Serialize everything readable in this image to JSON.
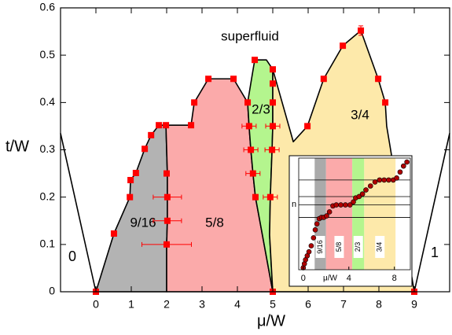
{
  "chart_data": [
    {
      "type": "phase",
      "xlabel": "μ/W",
      "ylabel": "t/W",
      "xlim": [
        -1,
        10
      ],
      "ylim": [
        0,
        0.6
      ],
      "xticks": [
        0,
        1,
        2,
        3,
        4,
        5,
        6,
        7,
        8,
        9
      ],
      "yticks": [
        0,
        0.1,
        0.2,
        0.3,
        0.4,
        0.5,
        0.6
      ],
      "regions": [
        {
          "name": "9/16",
          "color": "#b3b3b3",
          "x": [
            0,
            0.51,
            0.96,
            0.98,
            1.13,
            1.38,
            1.56,
            1.78,
            1.98,
            2.0,
            2.02,
            2.02,
            2.02,
            2.0,
            2.0
          ],
          "y": [
            0,
            0.123,
            0.2,
            0.236,
            0.251,
            0.302,
            0.331,
            0.352,
            0.352,
            0.3,
            0.25,
            0.2,
            0.15,
            0.1,
            0
          ]
        },
        {
          "name": "5/8",
          "color": "#fbaaaa",
          "x": [
            2.0,
            2.0,
            2.02,
            2.02,
            2.02,
            2.0,
            1.98,
            2.69,
            2.78,
            3.18,
            3.89,
            4.29,
            4.33,
            4.38,
            4.44,
            4.51,
            4.67,
            5.0
          ],
          "y": [
            0,
            0.1,
            0.15,
            0.2,
            0.25,
            0.3,
            0.352,
            0.352,
            0.4,
            0.45,
            0.45,
            0.4,
            0.35,
            0.3,
            0.25,
            0.2,
            0.135,
            0
          ]
        },
        {
          "name": "2/3",
          "color": "#b4f58e",
          "x": [
            5.0,
            4.67,
            4.51,
            4.44,
            4.38,
            4.33,
            4.29,
            4.4,
            4.49,
            4.82,
            5.0,
            5.0,
            5.0,
            5.0,
            4.98,
            4.93,
            4.91
          ],
          "y": [
            0,
            0.135,
            0.2,
            0.25,
            0.3,
            0.35,
            0.4,
            0.45,
            0.49,
            0.49,
            0.47,
            0.44,
            0.4,
            0.35,
            0.3,
            0.2,
            0.12
          ]
        },
        {
          "name": "3/4",
          "color": "#fde9aa",
          "x": [
            5.0,
            4.91,
            4.93,
            4.98,
            5.0,
            5.0,
            5.0,
            5.0,
            5.58,
            5.98,
            6.44,
            6.98,
            7.49,
            7.98,
            8.18,
            8.22,
            9.0
          ],
          "y": [
            0,
            0.12,
            0.2,
            0.3,
            0.35,
            0.4,
            0.44,
            0.47,
            0.317,
            0.35,
            0.45,
            0.52,
            0.552,
            0.45,
            0.4,
            0.35,
            0
          ]
        }
      ],
      "lines": [
        {
          "x": [
            -1,
            0
          ],
          "y": [
            0.335,
            0
          ]
        },
        {
          "x": [
            9,
            10
          ],
          "y": [
            0,
            0.335
          ]
        }
      ],
      "points": {
        "color": "#ff0000",
        "x": [
          0,
          0.51,
          0.96,
          0.98,
          1.13,
          1.38,
          1.56,
          1.78,
          1.98,
          2.0,
          2.02,
          2.02,
          2.0,
          2.69,
          2.78,
          3.18,
          3.89,
          4.49,
          4.29,
          4.33,
          4.38,
          4.44,
          4.51,
          5.0,
          5.0,
          5.0,
          5.0,
          4.98,
          4.93,
          5.0,
          5.98,
          6.44,
          6.98,
          7.49,
          7.98,
          8.18,
          9.0
        ],
        "y": [
          0,
          0.123,
          0.2,
          0.236,
          0.251,
          0.302,
          0.331,
          0.352,
          0.352,
          0.1,
          0.15,
          0.2,
          0.25,
          0.352,
          0.4,
          0.45,
          0.45,
          0.49,
          0.4,
          0.35,
          0.3,
          0.25,
          0.2,
          0.47,
          0.44,
          0.4,
          0.35,
          0.3,
          0.2,
          0,
          0.35,
          0.45,
          0.52,
          0.552,
          0.45,
          0.4,
          0
        ],
        "xerr": [
          null,
          null,
          null,
          null,
          null,
          null,
          null,
          null,
          null,
          0.7,
          0.4,
          0.4,
          null,
          null,
          null,
          null,
          null,
          null,
          null,
          0.2,
          0.2,
          0.2,
          null,
          null,
          null,
          null,
          0.2,
          0.2,
          0.2,
          null,
          null,
          null,
          null,
          null,
          null,
          null,
          null
        ],
        "yerr": [
          null,
          null,
          null,
          null,
          null,
          null,
          null,
          null,
          null,
          null,
          null,
          null,
          null,
          null,
          null,
          null,
          null,
          null,
          null,
          null,
          null,
          null,
          null,
          null,
          null,
          null,
          null,
          null,
          null,
          null,
          null,
          null,
          null,
          0.01,
          null,
          null,
          null
        ]
      },
      "annotations": [
        "superfluid",
        "0",
        "1"
      ]
    },
    {
      "type": "scatter",
      "xlabel": "μ/W",
      "ylabel": "n",
      "xlim": [
        -0.4,
        9.4
      ],
      "ylim": [
        0.3,
        0.86
      ],
      "xticks": [
        0,
        4,
        8
      ],
      "bands": [
        {
          "name": "9/16",
          "color": "#aaaaaa",
          "x": [
            1.0,
            2.0
          ]
        },
        {
          "name": "5/8",
          "color": "#fbaaaa",
          "x": [
            2.0,
            4.3
          ]
        },
        {
          "name": "2/3",
          "color": "#b4f58e",
          "x": [
            4.3,
            5.35
          ]
        },
        {
          "name": "3/4",
          "color": "#fde9aa",
          "x": [
            5.35,
            8.1
          ]
        }
      ],
      "hlines": [
        0.5625,
        0.625,
        0.6667,
        0.75
      ],
      "x": [
        0,
        0.1,
        0.2,
        0.35,
        0.5,
        0.7,
        0.9,
        1.05,
        1.2,
        1.4,
        1.6,
        1.8,
        2.05,
        2.3,
        2.6,
        2.9,
        3.3,
        3.7,
        4.1,
        4.4,
        4.6,
        4.9,
        5.2,
        5.5,
        5.9,
        6.3,
        6.7,
        7.1,
        7.5,
        7.9,
        8.2,
        8.5,
        8.8,
        9.1
      ],
      "y": [
        0.31,
        0.33,
        0.35,
        0.37,
        0.39,
        0.42,
        0.46,
        0.5,
        0.53,
        0.556,
        0.5625,
        0.5625,
        0.57,
        0.59,
        0.62,
        0.625,
        0.625,
        0.625,
        0.625,
        0.64,
        0.66,
        0.667,
        0.68,
        0.7,
        0.72,
        0.74,
        0.75,
        0.75,
        0.75,
        0.75,
        0.76,
        0.79,
        0.82,
        0.84
      ]
    }
  ]
}
